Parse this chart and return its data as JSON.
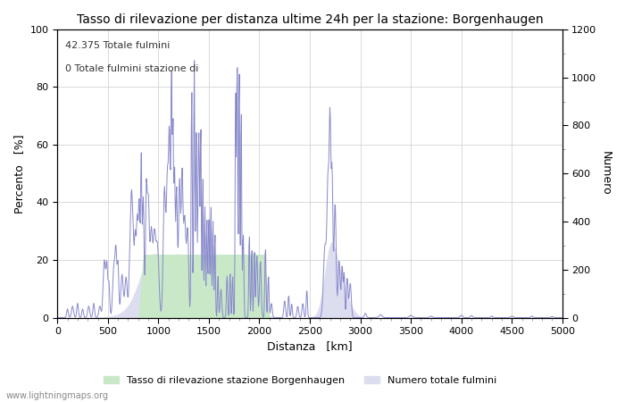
{
  "title": "Tasso di rilevazione per distanza ultime 24h per la stazione: Borgenhaugen",
  "xlabel": "Distanza   [km]",
  "ylabel_left": "Percento   [%]",
  "ylabel_right": "Numero",
  "annotation_line1": "42.375 Totale fulmini",
  "annotation_line2": "0 Totale fulmini stazione di",
  "xlim": [
    0,
    5000
  ],
  "ylim_left": [
    0,
    100
  ],
  "ylim_right": [
    0,
    1200
  ],
  "xticks": [
    0,
    500,
    1000,
    1500,
    2000,
    2500,
    3000,
    3500,
    4000,
    4500,
    5000
  ],
  "yticks_left": [
    0,
    20,
    40,
    60,
    80,
    100
  ],
  "yticks_right": [
    0,
    200,
    400,
    600,
    800,
    1000,
    1200
  ],
  "legend_label1": "Tasso di rilevazione stazione Borgenhaugen",
  "legend_label2": "Numero totale fulmini",
  "fill_color_green": "#c8e8c8",
  "fill_color_blue": "#ddddf0",
  "line_color": "#8888cc",
  "watermark": "www.lightningmaps.org",
  "background_color": "#ffffff",
  "grid_color": "#cccccc"
}
